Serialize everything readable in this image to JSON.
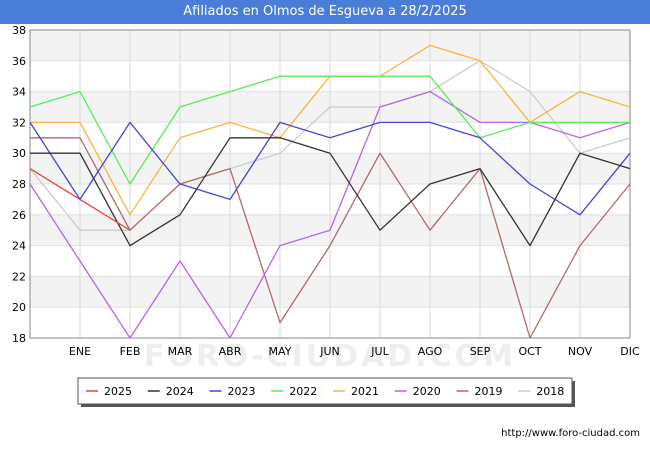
{
  "header": {
    "title": "Afiliados en Olmos de Esgueva a 28/2/2025"
  },
  "footer": {
    "source": "http://www.foro-ciudad.com",
    "watermark": "FORO-CIUDAD.COM"
  },
  "chart_data": {
    "type": "line",
    "title": "Afiliados en Olmos de Esgueva a 28/2/2025",
    "xlabel": "",
    "ylabel": "",
    "categories": [
      "",
      "ENE",
      "FEB",
      "MAR",
      "ABR",
      "MAY",
      "JUN",
      "JUL",
      "AGO",
      "SEP",
      "OCT",
      "NOV",
      "DIC"
    ],
    "ylim": [
      18,
      38
    ],
    "yticks": [
      18,
      20,
      22,
      24,
      26,
      28,
      30,
      32,
      34,
      36,
      38
    ],
    "grid": true,
    "legend_position": "bottom",
    "series": [
      {
        "name": "2025",
        "color": "#e8433a",
        "values": [
          29,
          27,
          25,
          null,
          null,
          null,
          null,
          null,
          null,
          null,
          null,
          null,
          null
        ]
      },
      {
        "name": "2024",
        "color": "#333333",
        "values": [
          30,
          30,
          24,
          26,
          31,
          31,
          30,
          25,
          28,
          29,
          24,
          30,
          29
        ]
      },
      {
        "name": "2023",
        "color": "#4444dd",
        "values": [
          32,
          27,
          32,
          28,
          27,
          32,
          31,
          32,
          32,
          31,
          28,
          26,
          30
        ]
      },
      {
        "name": "2022",
        "color": "#55ee55",
        "values": [
          33,
          34,
          28,
          33,
          34,
          35,
          35,
          35,
          35,
          31,
          32,
          32,
          32
        ]
      },
      {
        "name": "2021",
        "color": "#f5b640",
        "values": [
          32,
          32,
          26,
          31,
          32,
          31,
          35,
          35,
          37,
          36,
          32,
          34,
          33
        ]
      },
      {
        "name": "2020",
        "color": "#b566e8",
        "values": [
          28,
          23,
          18,
          23,
          18,
          24,
          25,
          33,
          34,
          32,
          32,
          31,
          32
        ]
      },
      {
        "name": "2019",
        "color": "#b06a6a",
        "values": [
          31,
          31,
          25,
          28,
          29,
          19,
          24,
          30,
          25,
          29,
          18,
          24,
          28
        ]
      },
      {
        "name": "2018",
        "color": "#cccccc",
        "values": [
          29,
          25,
          25,
          28,
          29,
          30,
          33,
          33,
          34,
          36,
          34,
          30,
          31
        ]
      }
    ]
  }
}
